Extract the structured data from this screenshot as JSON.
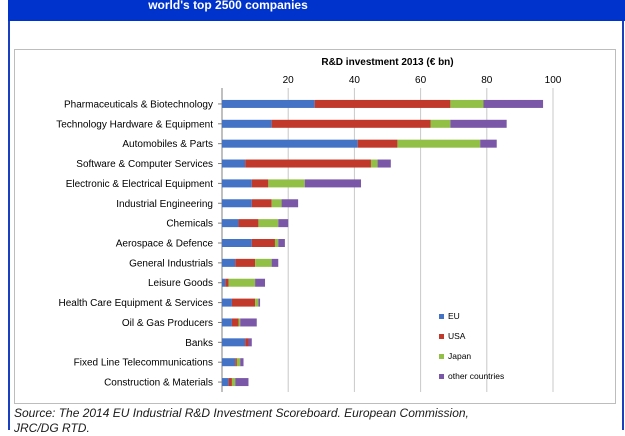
{
  "header": {
    "title": "world's top 2500 companies"
  },
  "chart_data": {
    "type": "bar",
    "orientation": "horizontal",
    "stacked": true,
    "title": "R&D investment 2013 (€ bn)",
    "xlim": [
      0,
      100
    ],
    "xticks": [
      "20",
      "40",
      "60",
      "80",
      "100"
    ],
    "categories": [
      "Pharmaceuticals & Biotechnology",
      "Technology Hardware & Equipment",
      "Automobiles & Parts",
      "Software & Computer Services",
      "Electronic & Electrical Equipment",
      "Industrial Engineering",
      "Chemicals",
      "Aerospace & Defence",
      "General Industrials",
      "Leisure Goods",
      "Health Care Equipment & Services",
      "Oil & Gas Producers",
      "Banks",
      "Fixed Line Telecommunications",
      "Construction & Materials"
    ],
    "series": [
      {
        "name": "EU",
        "color": "#4472c4",
        "values": [
          28,
          15,
          41,
          7,
          9,
          9,
          5,
          9,
          4,
          1,
          3,
          3,
          7,
          4,
          2
        ]
      },
      {
        "name": "USA",
        "color": "#c0392b",
        "values": [
          41,
          48,
          12,
          38,
          5,
          6,
          6,
          7,
          6,
          1,
          7,
          2,
          1,
          0.5,
          1
        ]
      },
      {
        "name": "Japan",
        "color": "#92c047",
        "values": [
          10,
          6,
          25,
          2,
          11,
          3,
          6,
          1,
          5,
          8,
          1,
          0.5,
          0,
          1,
          1
        ]
      },
      {
        "name": "other countries",
        "color": "#7b57a8",
        "values": [
          18,
          17,
          5,
          4,
          17,
          5,
          3,
          2,
          2,
          3,
          0.5,
          5,
          1,
          1,
          4
        ]
      }
    ],
    "legend_position": "bottom-right"
  },
  "source": {
    "line1": "Source: The 2014 EU Industrial R&D Investment Scoreboard.  European Commission,",
    "line2": "JRC/DG RTD."
  }
}
